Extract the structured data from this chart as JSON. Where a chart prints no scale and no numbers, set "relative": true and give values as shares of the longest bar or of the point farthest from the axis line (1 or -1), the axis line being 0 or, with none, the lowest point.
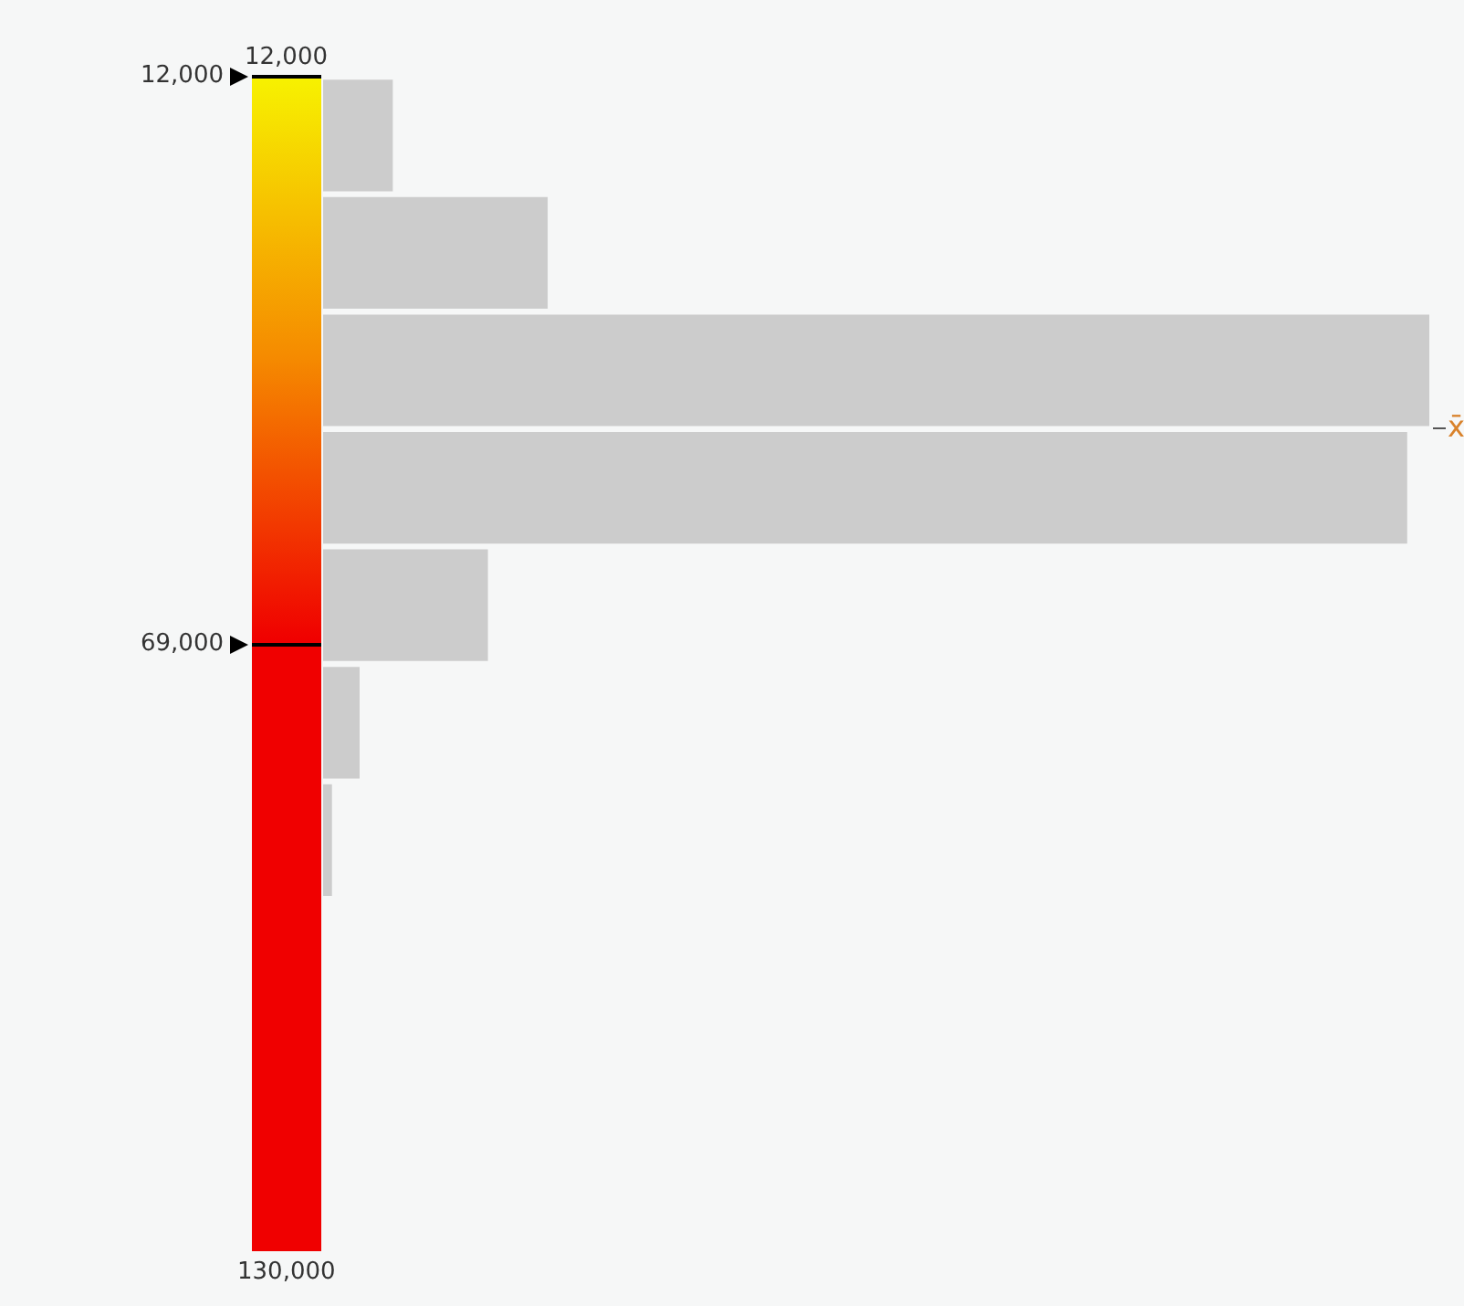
{
  "chart_data": {
    "type": "bar",
    "orientation": "horizontal",
    "relative": true,
    "categories": [
      null,
      null,
      null,
      null,
      null,
      null,
      null
    ],
    "values": [
      0.063,
      0.203,
      1,
      0.98,
      0.149,
      0.033,
      0.008
    ],
    "color": "#cccccc",
    "annotations": [
      "12,000",
      "12,000",
      "69,000",
      "130,000",
      "x̄"
    ]
  }
}
